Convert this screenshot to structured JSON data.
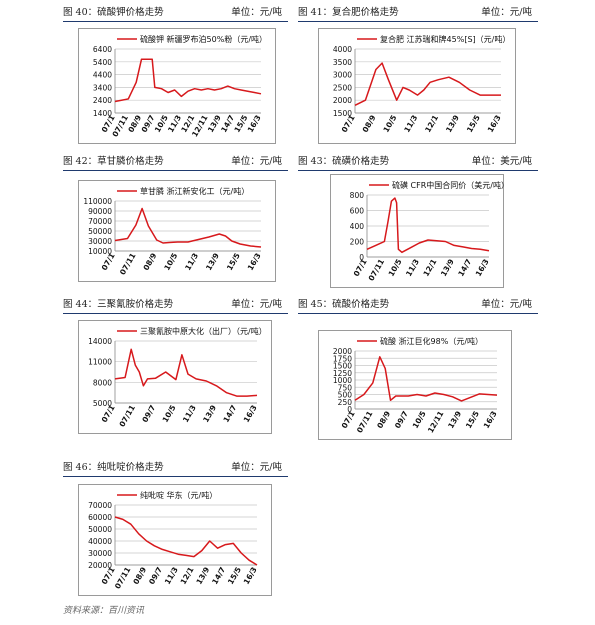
{
  "figures": [
    {
      "caption": "图 40：硫酸钾价格走势",
      "unit": "单位：元/吨"
    },
    {
      "caption": "图 41：复合肥价格走势",
      "unit": "单位：元/吨"
    },
    {
      "caption": "图 42：草甘膦价格走势",
      "unit": "单位：元/吨"
    },
    {
      "caption": "图 43：硫磺价格走势",
      "unit": "单位：美元/吨"
    },
    {
      "caption": "图 44：三聚氰胺价格走势",
      "unit": "单位：元/吨"
    },
    {
      "caption": "图 45：硫酸价格走势",
      "unit": "单位：元/吨"
    },
    {
      "caption": "图 46：纯吡啶价格走势",
      "unit": "单位：元/吨"
    }
  ],
  "footer": "资料来源：百川资讯",
  "colors": {
    "line": "#d7191c",
    "grid": "#c8c8c8",
    "header_rule": "#1f3a6e"
  },
  "chart_data": [
    {
      "type": "line",
      "legend": "硫酸钾 新疆罗布泊50%粉（元/吨）",
      "ylim": [
        1400,
        6400
      ],
      "yticks": [
        1400,
        2400,
        3400,
        4400,
        5400,
        6400
      ],
      "tick_labels": [
        "07/1",
        "07/11",
        "08/9",
        "09/7",
        "10/5",
        "11/3",
        "12/1",
        "12/11",
        "13/9",
        "14/7",
        "15/5",
        "16/3"
      ],
      "series": [
        {
          "x": [
            0,
            1,
            1.6,
            2,
            2.05,
            2.4,
            2.8,
            3,
            3.5,
            4,
            4.5,
            5,
            5.5,
            6,
            6.5,
            7,
            7.5,
            8,
            8.5,
            9,
            9.5,
            10,
            10.5,
            11
          ],
          "values": [
            2300,
            2500,
            3800,
            5600,
            5600,
            5600,
            5600,
            3400,
            3300,
            3000,
            3200,
            2700,
            3100,
            3300,
            3200,
            3300,
            3200,
            3300,
            3500,
            3300,
            3200,
            3100,
            3000,
            2900
          ]
        }
      ]
    },
    {
      "type": "line",
      "legend": "复合肥 江苏瑞和牌45%[S]（元/吨）",
      "ylim": [
        1500,
        4000
      ],
      "yticks": [
        1500,
        2000,
        2500,
        3000,
        3500,
        4000
      ],
      "tick_labels": [
        "07/1",
        "08/9",
        "10/5",
        "11/3",
        "12/1",
        "13/9",
        "15/5",
        "16/3"
      ],
      "series": [
        {
          "x": [
            0,
            0.5,
            1,
            1.3,
            1.6,
            2,
            2.3,
            2.6,
            3,
            3.3,
            3.6,
            4,
            4.5,
            5,
            5.5,
            6,
            6.4,
            6.6,
            7
          ],
          "values": [
            1800,
            2000,
            3200,
            3450,
            2800,
            2000,
            2500,
            2400,
            2200,
            2400,
            2700,
            2800,
            2900,
            2700,
            2400,
            2200,
            2200,
            2200,
            2200
          ]
        }
      ]
    },
    {
      "type": "line",
      "legend": "草甘膦 浙江新安化工（元/吨）",
      "ylim": [
        10000,
        110000
      ],
      "yticks": [
        10000,
        30000,
        50000,
        70000,
        90000,
        110000
      ],
      "tick_labels": [
        "07/1",
        "07/11",
        "08/9",
        "10/5",
        "11/3",
        "13/9",
        "15/5",
        "16/3"
      ],
      "series": [
        {
          "x": [
            0,
            0.6,
            1,
            1.3,
            1.6,
            2,
            2.3,
            2.6,
            3,
            3.5,
            4,
            4.5,
            5,
            5.3,
            5.6,
            6,
            6.5,
            7
          ],
          "values": [
            31000,
            35000,
            62000,
            95000,
            60000,
            32000,
            26000,
            27000,
            28000,
            28000,
            33000,
            38000,
            44000,
            40000,
            30000,
            24000,
            20000,
            18000
          ]
        }
      ]
    },
    {
      "type": "line",
      "legend": "硫磺 CFR中国合同价（美元/吨）",
      "ylim": [
        0,
        800
      ],
      "yticks": [
        0,
        200,
        400,
        600,
        800
      ],
      "tick_labels": [
        "07/1",
        "07/11",
        "10/5",
        "11/3",
        "12/1",
        "13/9",
        "14/7",
        "16/3"
      ],
      "series": [
        {
          "x": [
            0,
            0.5,
            1,
            1.2,
            1.4,
            1.6,
            1.7,
            1.8,
            2,
            2.5,
            3,
            3.5,
            4,
            4.5,
            5,
            5.5,
            6,
            6.5,
            7
          ],
          "values": [
            100,
            150,
            200,
            450,
            720,
            760,
            700,
            100,
            60,
            120,
            180,
            220,
            210,
            200,
            150,
            130,
            110,
            100,
            80
          ]
        }
      ]
    },
    {
      "type": "line",
      "legend": "三聚氰胺中原大化（出厂）（元/吨）",
      "ylim": [
        5000,
        14000
      ],
      "yticks": [
        5000,
        8000,
        11000,
        14000
      ],
      "tick_labels": [
        "07/1",
        "07/11",
        "09/7",
        "10/5",
        "11/3",
        "13/9",
        "14/7",
        "16/3"
      ],
      "series": [
        {
          "x": [
            0,
            0.5,
            0.8,
            1,
            1.2,
            1.4,
            1.6,
            2,
            2.5,
            3,
            3.3,
            3.6,
            4,
            4.5,
            5,
            5.5,
            6,
            6.5,
            7
          ],
          "values": [
            8500,
            8700,
            12800,
            10500,
            9500,
            7500,
            8500,
            8600,
            9500,
            8400,
            12000,
            9200,
            8500,
            8200,
            7500,
            6500,
            6000,
            6000,
            6100
          ]
        }
      ]
    },
    {
      "type": "line",
      "legend": "硫酸 浙江巨化98%（元/吨）",
      "ylim": [
        0,
        2000
      ],
      "yticks": [
        0,
        250,
        500,
        750,
        1000,
        1250,
        1500,
        1750,
        2000
      ],
      "tick_labels": [
        "07/1",
        "07/11",
        "08/9",
        "09/7",
        "10/5",
        "12/11",
        "13/9",
        "15/5",
        "16/3"
      ],
      "series": [
        {
          "x": [
            0,
            0.5,
            1,
            1.4,
            1.7,
            2,
            2.3,
            3,
            3.5,
            4,
            4.5,
            5,
            5.5,
            6,
            6.5,
            7,
            7.5,
            8
          ],
          "values": [
            300,
            500,
            900,
            1800,
            1400,
            300,
            450,
            450,
            500,
            450,
            550,
            500,
            420,
            280,
            400,
            520,
            500,
            480
          ]
        }
      ]
    },
    {
      "type": "line",
      "legend": "纯吡啶 华东（元/吨）",
      "ylim": [
        20000,
        70000
      ],
      "yticks": [
        20000,
        30000,
        40000,
        50000,
        60000,
        70000
      ],
      "tick_labels": [
        "07/1",
        "07/11",
        "08/9",
        "09/7",
        "11/3",
        "12/1",
        "13/9",
        "14/7",
        "15/5",
        "16/3"
      ],
      "series": [
        {
          "x": [
            0,
            0.5,
            1,
            1.5,
            2,
            2.5,
            3,
            3.5,
            4,
            4.5,
            5,
            5.5,
            6,
            6.5,
            7,
            7.5,
            8,
            8.5,
            9
          ],
          "values": [
            60000,
            58000,
            54000,
            46000,
            40000,
            36000,
            33000,
            31000,
            29000,
            28000,
            27000,
            32000,
            40000,
            34000,
            37000,
            38000,
            30000,
            24000,
            20000
          ]
        }
      ]
    }
  ]
}
